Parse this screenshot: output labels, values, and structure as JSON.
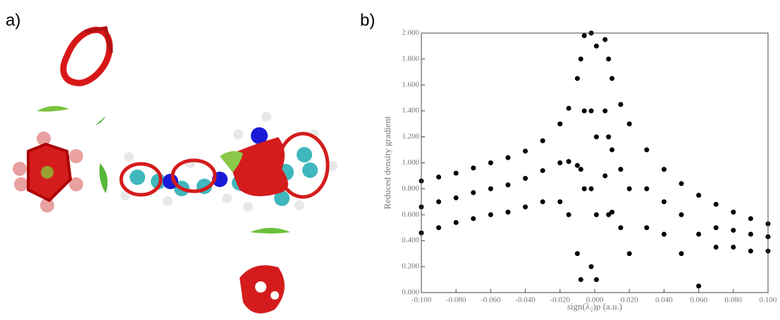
{
  "panel_a": {
    "label": "a)"
  },
  "chart_data": {
    "type": "scatter",
    "panel_label": "b)",
    "x_label": "sign(λ₂)ρ (a.u.)",
    "y_label": "Reduced density gradient",
    "color": "#000000",
    "x": [
      -0.1,
      -0.1,
      -0.1,
      -0.09,
      -0.09,
      -0.09,
      -0.08,
      -0.08,
      -0.08,
      -0.07,
      -0.07,
      -0.07,
      -0.06,
      -0.06,
      -0.06,
      -0.05,
      -0.05,
      -0.05,
      -0.04,
      -0.04,
      -0.04,
      -0.03,
      -0.03,
      -0.03,
      -0.02,
      -0.02,
      -0.02,
      -0.015,
      -0.015,
      -0.015,
      -0.01,
      -0.01,
      -0.01,
      -0.008,
      -0.008,
      -0.008,
      -0.006,
      -0.006,
      -0.006,
      -0.002,
      -0.002,
      -0.002,
      -0.002,
      0.001,
      0.001,
      0.001,
      0.001,
      0.006,
      0.006,
      0.006,
      0.008,
      0.008,
      0.008,
      0.01,
      0.01,
      0.01,
      0.015,
      0.015,
      0.015,
      0.02,
      0.02,
      0.02,
      0.03,
      0.03,
      0.03,
      0.04,
      0.04,
      0.04,
      0.05,
      0.05,
      0.05,
      0.06,
      0.06,
      0.06,
      0.07,
      0.07,
      0.07,
      0.08,
      0.08,
      0.08,
      0.09,
      0.09,
      0.09,
      0.1,
      0.1,
      0.1
    ],
    "y": [
      0.86,
      0.66,
      0.46,
      0.89,
      0.7,
      0.5,
      0.92,
      0.73,
      0.54,
      0.96,
      0.77,
      0.57,
      1.0,
      0.8,
      0.6,
      1.04,
      0.83,
      0.62,
      1.09,
      0.88,
      0.66,
      1.17,
      0.94,
      0.7,
      1.3,
      1.0,
      0.7,
      1.42,
      1.01,
      0.6,
      1.65,
      0.98,
      0.3,
      1.8,
      0.95,
      0.1,
      1.98,
      1.4,
      0.8,
      0.2,
      0.8,
      1.4,
      2.0,
      0.1,
      0.6,
      1.2,
      1.9,
      1.95,
      1.4,
      0.9,
      1.8,
      1.2,
      0.6,
      1.65,
      1.1,
      0.62,
      1.45,
      0.95,
      0.5,
      1.3,
      0.8,
      0.3,
      1.1,
      0.8,
      0.5,
      0.95,
      0.7,
      0.45,
      0.84,
      0.6,
      0.3,
      0.75,
      0.45,
      0.05,
      0.68,
      0.5,
      0.35,
      0.62,
      0.48,
      0.35,
      0.57,
      0.45,
      0.32,
      0.53,
      0.43,
      0.32
    ],
    "xlim": [
      -0.1,
      0.1
    ],
    "ylim": [
      0,
      2
    ],
    "xticks": [
      {
        "value": -0.1,
        "label": "-0.100"
      },
      {
        "value": -0.08,
        "label": "-0.080"
      },
      {
        "value": -0.06,
        "label": "-0.060"
      },
      {
        "value": -0.04,
        "label": "-0.040"
      },
      {
        "value": -0.02,
        "label": "-0.020"
      },
      {
        "value": 0,
        "label": "0.000"
      },
      {
        "value": 0.02,
        "label": "0.020"
      },
      {
        "value": 0.04,
        "label": "0.040"
      },
      {
        "value": 0.06,
        "label": "0.060"
      },
      {
        "value": 0.08,
        "label": "0.080"
      },
      {
        "value": 0.1,
        "label": "0.100"
      }
    ],
    "yticks": [
      {
        "value": 0,
        "label": "0.000"
      },
      {
        "value": 0.2,
        "label": "0.200"
      },
      {
        "value": 0.4,
        "label": "0.400"
      },
      {
        "value": 0.6,
        "label": "0.600"
      },
      {
        "value": 0.8,
        "label": "0.800"
      },
      {
        "value": 1,
        "label": "1.000"
      },
      {
        "value": 1.2,
        "label": "1.200"
      },
      {
        "value": 1.4,
        "label": "1.400"
      },
      {
        "value": 1.6,
        "label": "1.600"
      },
      {
        "value": 1.8,
        "label": "1.800"
      },
      {
        "value": 2,
        "label": "2.000"
      }
    ]
  }
}
